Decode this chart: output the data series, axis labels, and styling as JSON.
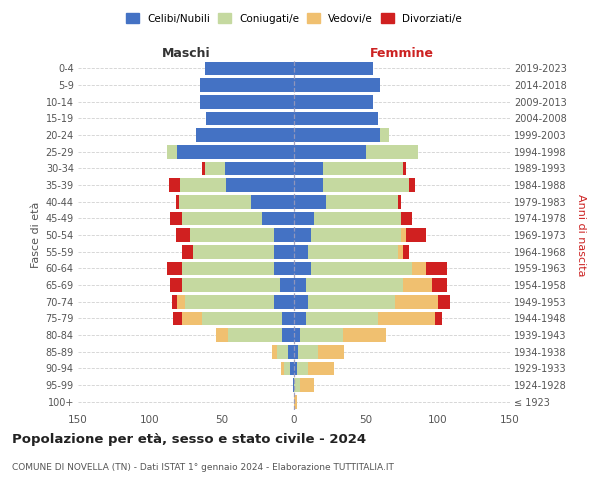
{
  "age_groups": [
    "100+",
    "95-99",
    "90-94",
    "85-89",
    "80-84",
    "75-79",
    "70-74",
    "65-69",
    "60-64",
    "55-59",
    "50-54",
    "45-49",
    "40-44",
    "35-39",
    "30-34",
    "25-29",
    "20-24",
    "15-19",
    "10-14",
    "5-9",
    "0-4"
  ],
  "birth_years": [
    "≤ 1923",
    "1924-1928",
    "1929-1933",
    "1934-1938",
    "1939-1943",
    "1944-1948",
    "1949-1953",
    "1954-1958",
    "1959-1963",
    "1964-1968",
    "1969-1973",
    "1974-1978",
    "1979-1983",
    "1984-1988",
    "1989-1993",
    "1994-1998",
    "1999-2003",
    "2004-2008",
    "2009-2013",
    "2014-2018",
    "2019-2023"
  ],
  "colors": {
    "celibe": "#4472c4",
    "coniugato": "#c5d9a0",
    "vedovo": "#f0c070",
    "divorziato": "#d02020"
  },
  "maschi": {
    "celibe": [
      0,
      1,
      3,
      4,
      8,
      8,
      14,
      10,
      14,
      14,
      14,
      22,
      30,
      47,
      48,
      81,
      68,
      61,
      65,
      65,
      62
    ],
    "coniugato": [
      0,
      0,
      4,
      8,
      38,
      56,
      62,
      68,
      64,
      56,
      58,
      56,
      50,
      32,
      14,
      7,
      0,
      0,
      0,
      0,
      0
    ],
    "vedovo": [
      0,
      0,
      2,
      3,
      8,
      14,
      5,
      0,
      0,
      0,
      0,
      0,
      0,
      0,
      0,
      0,
      0,
      0,
      0,
      0,
      0
    ],
    "divorziato": [
      0,
      0,
      0,
      0,
      0,
      6,
      4,
      8,
      10,
      8,
      10,
      8,
      2,
      8,
      2,
      0,
      0,
      0,
      0,
      0,
      0
    ]
  },
  "femmine": {
    "nubile": [
      0,
      0,
      2,
      3,
      4,
      8,
      10,
      8,
      12,
      10,
      12,
      14,
      22,
      20,
      20,
      50,
      60,
      58,
      55,
      60,
      55
    ],
    "coniugata": [
      0,
      4,
      8,
      14,
      30,
      50,
      60,
      68,
      70,
      62,
      62,
      60,
      50,
      60,
      56,
      36,
      6,
      0,
      0,
      0,
      0
    ],
    "vedova": [
      2,
      10,
      18,
      18,
      30,
      40,
      30,
      20,
      10,
      4,
      4,
      0,
      0,
      0,
      0,
      0,
      0,
      0,
      0,
      0,
      0
    ],
    "divorziata": [
      0,
      0,
      0,
      0,
      0,
      5,
      8,
      10,
      14,
      4,
      14,
      8,
      2,
      4,
      2,
      0,
      0,
      0,
      0,
      0,
      0
    ]
  },
  "xlim": 150,
  "title": "Popolazione per età, sesso e stato civile - 2024",
  "subtitle": "COMUNE DI NOVELLA (TN) - Dati ISTAT 1° gennaio 2024 - Elaborazione TUTTITALIA.IT",
  "ylabel_left": "Fasce di età",
  "ylabel_right": "Anni di nascita",
  "xlabel_left": "Maschi",
  "xlabel_right": "Femmine",
  "legend_labels": [
    "Celibi/Nubili",
    "Coniugati/e",
    "Vedovi/e",
    "Divorziati/e"
  ],
  "background_color": "#ffffff",
  "grid_color": "#cccccc"
}
